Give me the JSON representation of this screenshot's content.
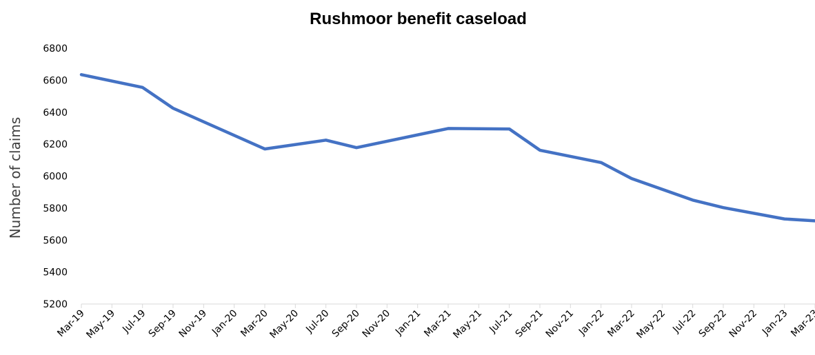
{
  "chart_data": {
    "type": "line",
    "title": "Rushmoor benefit caseload",
    "xlabel": "",
    "ylabel": "Number of claims",
    "ylim": [
      5200,
      6800
    ],
    "yticks": [
      5200,
      5400,
      5600,
      5800,
      6000,
      6200,
      6400,
      6600,
      6800
    ],
    "categories": [
      "Mar-19",
      "May-19",
      "Jul-19",
      "Sep-19",
      "Nov-19",
      "Jan-20",
      "Mar-20",
      "May-20",
      "Jul-20",
      "Sep-20",
      "Nov-20",
      "Jan-21",
      "Mar-21",
      "May-21",
      "Jul-21",
      "Sep-21",
      "Nov-21",
      "Jan-22",
      "Mar-22",
      "May-22",
      "Jul-22",
      "Sep-22",
      "Nov-22",
      "Jan-23",
      "Mar-23"
    ],
    "series": [
      {
        "name": "",
        "color": "#4472C4",
        "points": [
          {
            "x": "Mar-19",
            "y": 6635
          },
          {
            "x": "Jul-19",
            "y": 6555
          },
          {
            "x": "Sep-19",
            "y": 6425
          },
          {
            "x": "Mar-20",
            "y": 6170
          },
          {
            "x": "Jul-20",
            "y": 6225
          },
          {
            "x": "Sep-20",
            "y": 6178
          },
          {
            "x": "Mar-21",
            "y": 6298
          },
          {
            "x": "Jul-21",
            "y": 6295
          },
          {
            "x": "Sep-21",
            "y": 6162
          },
          {
            "x": "Jan-22",
            "y": 6085
          },
          {
            "x": "Mar-22",
            "y": 5985
          },
          {
            "x": "Jul-22",
            "y": 5850
          },
          {
            "x": "Sep-22",
            "y": 5803
          },
          {
            "x": "Jan-23",
            "y": 5732
          },
          {
            "x": "Mar-23",
            "y": 5720
          }
        ]
      }
    ],
    "grid": false,
    "legend": "none"
  }
}
